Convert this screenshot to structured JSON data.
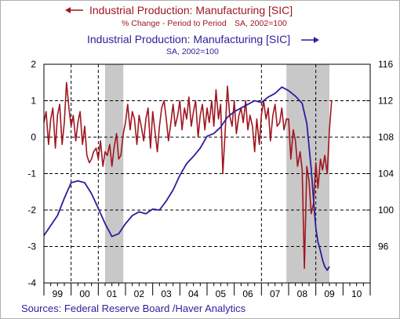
{
  "chart_data": {
    "type": "line",
    "legend": {
      "placement": "top",
      "left_series": {
        "title": "Industrial Production: Manufacturing [SIC]",
        "subtitle_a": "% Change - Period to Period",
        "subtitle_b": "SA, 2002=100",
        "arrow": "←"
      },
      "right_series": {
        "title": "Industrial Production: Manufacturing [SIC]",
        "subtitle": "SA, 2002=100",
        "arrow": "→"
      }
    },
    "x_tick_labels": [
      "99",
      "00",
      "01",
      "02",
      "03",
      "04",
      "05",
      "06",
      "07",
      "08",
      "09",
      "10"
    ],
    "xlim": [
      1999.0,
      2011.0
    ],
    "y_left": {
      "ylim": [
        -4.0,
        2.0
      ],
      "ticks": [
        -4,
        -3,
        -2,
        -1,
        0,
        1,
        2
      ],
      "tick_labels": [
        "-4",
        "-3",
        "-2",
        "-1",
        "0",
        "1",
        "2"
      ]
    },
    "y_right": {
      "ylim": [
        92.0,
        116.0
      ],
      "ticks": [
        96,
        100,
        104,
        108,
        112,
        116
      ],
      "tick_labels": [
        "96",
        "100",
        "104",
        "108",
        "112",
        "116"
      ]
    },
    "recessions": [
      [
        2001.25,
        2001.92
      ],
      [
        2007.92,
        2009.5
      ]
    ],
    "vertical_dashed_years": [
      2000,
      2001,
      2007,
      2009
    ],
    "horizontal_dashed": "at major ticks",
    "series": [
      {
        "name": "Industrial Production: Manufacturing [SIC] — % Change - Period to Period",
        "axis": "left",
        "color": "#a01620",
        "x": [
          1999.0,
          1999.08,
          1999.17,
          1999.25,
          1999.33,
          1999.42,
          1999.5,
          1999.58,
          1999.67,
          1999.75,
          1999.83,
          1999.92,
          2000.0,
          2000.08,
          2000.17,
          2000.25,
          2000.33,
          2000.42,
          2000.5,
          2000.58,
          2000.67,
          2000.75,
          2000.83,
          2000.92,
          2001.0,
          2001.08,
          2001.17,
          2001.25,
          2001.33,
          2001.42,
          2001.5,
          2001.58,
          2001.67,
          2001.75,
          2001.83,
          2001.92,
          2002.0,
          2002.08,
          2002.17,
          2002.25,
          2002.33,
          2002.42,
          2002.5,
          2002.58,
          2002.67,
          2002.75,
          2002.83,
          2002.92,
          2003.0,
          2003.08,
          2003.17,
          2003.25,
          2003.33,
          2003.42,
          2003.5,
          2003.58,
          2003.67,
          2003.75,
          2003.83,
          2003.92,
          2004.0,
          2004.08,
          2004.17,
          2004.25,
          2004.33,
          2004.42,
          2004.5,
          2004.58,
          2004.67,
          2004.75,
          2004.83,
          2004.92,
          2005.0,
          2005.08,
          2005.17,
          2005.25,
          2005.33,
          2005.42,
          2005.5,
          2005.58,
          2005.67,
          2005.75,
          2005.83,
          2005.92,
          2006.0,
          2006.08,
          2006.17,
          2006.25,
          2006.33,
          2006.42,
          2006.5,
          2006.58,
          2006.67,
          2006.75,
          2006.83,
          2006.92,
          2007.0,
          2007.08,
          2007.17,
          2007.25,
          2007.33,
          2007.42,
          2007.5,
          2007.58,
          2007.67,
          2007.75,
          2007.83,
          2007.92,
          2008.0,
          2008.08,
          2008.17,
          2008.25,
          2008.33,
          2008.42,
          2008.5,
          2008.58,
          2008.67,
          2008.75,
          2008.83,
          2008.92,
          2009.0,
          2009.08,
          2009.17,
          2009.25,
          2009.33,
          2009.42,
          2009.5,
          2009.58
        ],
        "values": [
          0.4,
          0.7,
          -0.2,
          0.5,
          0.8,
          -0.3,
          0.6,
          0.9,
          -0.2,
          0.4,
          1.5,
          0.8,
          0.3,
          0.6,
          -0.1,
          0.4,
          0.7,
          -0.2,
          0.3,
          -0.5,
          -0.7,
          -0.6,
          -0.4,
          -0.3,
          -0.6,
          -0.1,
          -0.8,
          -0.4,
          -0.5,
          -0.2,
          -0.8,
          -0.3,
          0.1,
          -0.6,
          -0.5,
          0.1,
          0.4,
          0.9,
          0.2,
          0.7,
          0.5,
          -0.2,
          0.6,
          0.3,
          -0.1,
          0.5,
          0.8,
          -0.3,
          0.7,
          0.2,
          -0.4,
          0.3,
          0.8,
          1.0,
          0.5,
          -0.1,
          0.4,
          0.9,
          0.3,
          0.6,
          1.0,
          0.2,
          0.8,
          0.5,
          1.1,
          0.3,
          0.7,
          1.0,
          0.0,
          0.6,
          0.9,
          0.2,
          0.8,
          0.4,
          1.0,
          0.3,
          1.3,
          0.5,
          0.9,
          -1.0,
          0.2,
          1.4,
          0.6,
          0.3,
          1.0,
          0.1,
          0.6,
          0.8,
          0.4,
          1.0,
          0.2,
          0.6,
          0.3,
          -0.4,
          0.5,
          -0.2,
          0.6,
          1.0,
          0.5,
          0.8,
          -0.1,
          0.6,
          0.9,
          0.3,
          0.4,
          0.8,
          0.2,
          0.5,
          0.5,
          -0.6,
          0.2,
          -0.1,
          -0.8,
          -0.4,
          -0.9,
          -3.6,
          -0.8,
          -1.2,
          -2.1,
          -1.8,
          -0.7,
          -1.4,
          -0.6,
          -0.9,
          -0.5,
          -1.0,
          0.2,
          1.0
        ]
      },
      {
        "name": "Industrial Production: Manufacturing [SIC] — SA, 2002=100",
        "axis": "right",
        "color": "#2a1f9c",
        "x": [
          1999.0,
          1999.25,
          1999.5,
          1999.75,
          2000.0,
          2000.25,
          2000.5,
          2000.75,
          2001.0,
          2001.25,
          2001.5,
          2001.75,
          2002.0,
          2002.25,
          2002.5,
          2002.75,
          2003.0,
          2003.25,
          2003.5,
          2003.75,
          2004.0,
          2004.25,
          2004.5,
          2004.75,
          2005.0,
          2005.25,
          2005.5,
          2005.75,
          2006.0,
          2006.25,
          2006.5,
          2006.75,
          2007.0,
          2007.25,
          2007.5,
          2007.75,
          2008.0,
          2008.25,
          2008.5,
          2008.67,
          2008.75,
          2008.83,
          2008.92,
          2009.0,
          2009.08,
          2009.17,
          2009.25,
          2009.33,
          2009.42,
          2009.5
        ],
        "values": [
          97.2,
          98.3,
          99.4,
          101.3,
          103.0,
          103.2,
          103.0,
          101.8,
          100.2,
          98.5,
          97.1,
          97.4,
          98.5,
          99.4,
          99.8,
          99.6,
          100.1,
          100.0,
          101.0,
          102.2,
          103.8,
          105.1,
          105.9,
          106.8,
          108.1,
          108.4,
          109.1,
          110.2,
          110.8,
          111.2,
          111.6,
          112.0,
          111.8,
          112.4,
          112.8,
          113.5,
          113.1,
          112.5,
          111.7,
          109.5,
          107.0,
          104.5,
          101.0,
          98.0,
          96.5,
          95.5,
          94.5,
          93.8,
          93.4,
          93.8
        ]
      }
    ]
  },
  "footer": {
    "sources": "Sources:  Federal Reserve Board /Haver Analytics"
  }
}
